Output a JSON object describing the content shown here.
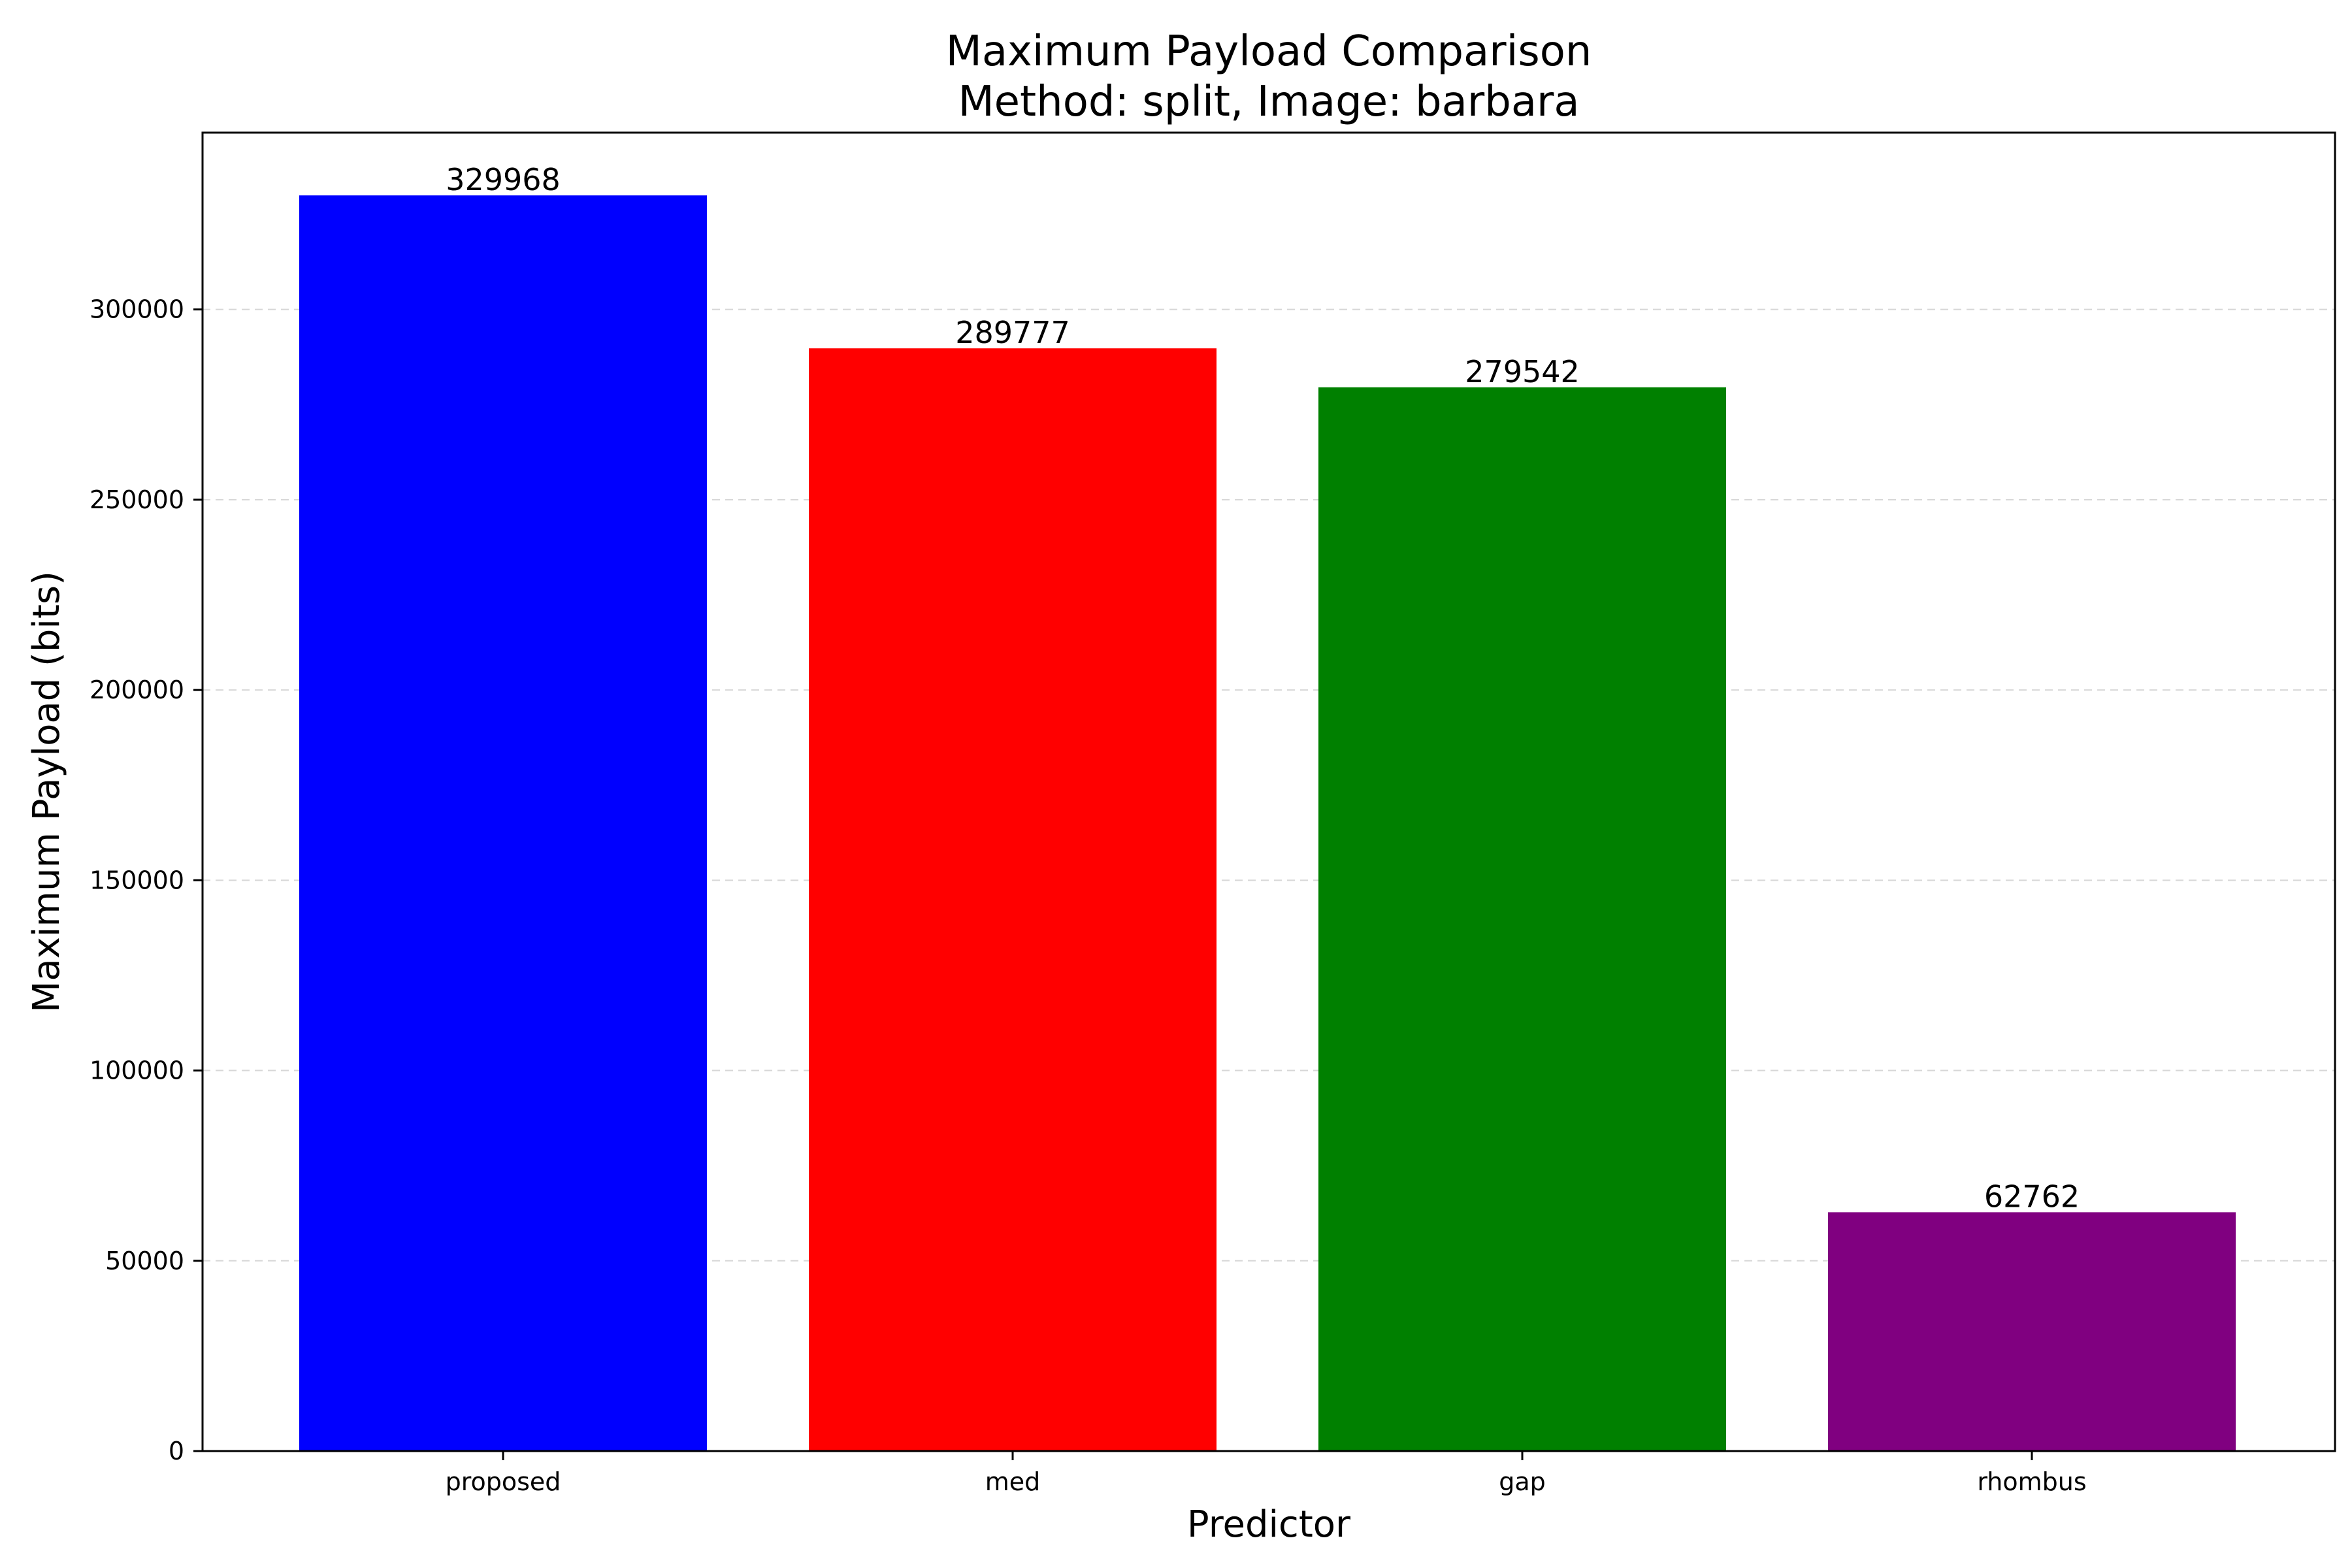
{
  "chart_data": {
    "type": "bar",
    "title": "Maximum Payload Comparison",
    "subtitle": "Method: split, Image: barbara",
    "xlabel": "Predictor",
    "ylabel": "Maximum Payload (bits)",
    "categories": [
      "proposed",
      "med",
      "gap",
      "rhombus"
    ],
    "values": [
      329968,
      289777,
      279542,
      62762
    ],
    "data_labels": [
      "329968",
      "289777",
      "279542",
      "62762"
    ],
    "colors": [
      "#0000ff",
      "#ff0000",
      "#008000",
      "#800080"
    ],
    "yticks": [
      0,
      50000,
      100000,
      150000,
      200000,
      250000,
      300000
    ],
    "ytick_labels": [
      "0",
      "50000",
      "100000",
      "150000",
      "200000",
      "250000",
      "300000"
    ],
    "ylim": [
      0,
      346466
    ],
    "grid": "y-dashed",
    "legend": "none"
  }
}
